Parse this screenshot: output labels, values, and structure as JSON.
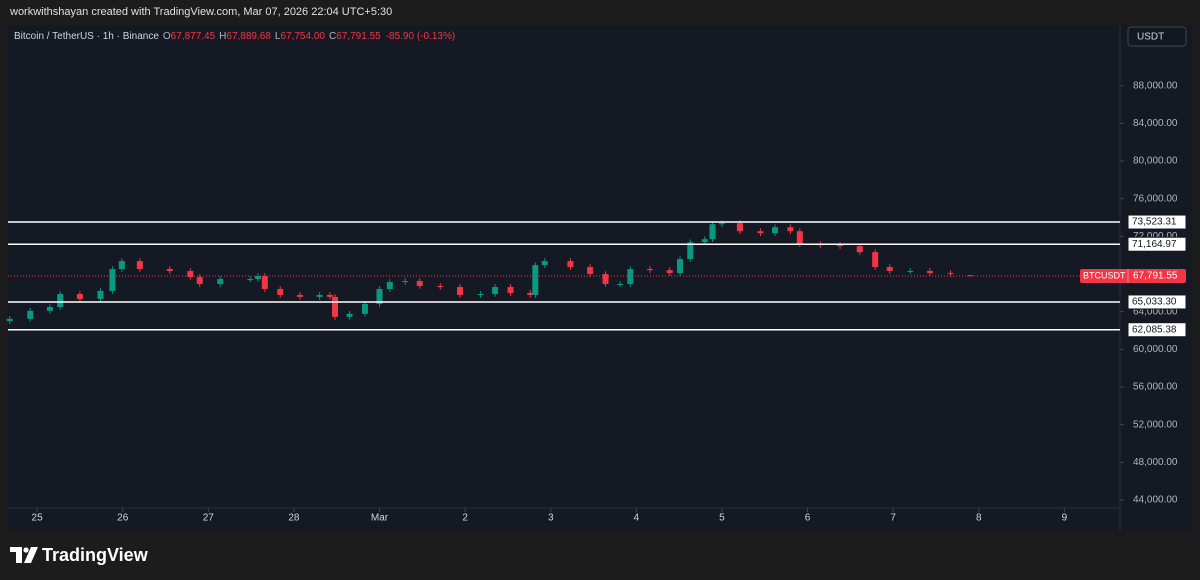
{
  "header": {
    "attribution": "workwithshayan created with TradingView.com, Mar 07, 2026 22:04 UTC+5:30"
  },
  "footer": {
    "brand": "TradingView"
  },
  "chart_data": {
    "type": "candlestick",
    "symbol": "Bitcoin / TetherUS · 1h · Binance",
    "ohlc_header": [
      {
        "key": "O",
        "value": "67,877.45"
      },
      {
        "key": "H",
        "value": "67,889.68"
      },
      {
        "key": "L",
        "value": "67,754.00"
      },
      {
        "key": "C",
        "value": "67,791.55"
      }
    ],
    "change": "-85.90 (-0.13%)",
    "currency": "USDT",
    "up_color": "#089981",
    "down_color": "#f23645",
    "grid": false,
    "x": [
      24.68,
      24.92,
      25.15,
      25.27,
      25.5,
      25.74,
      25.88,
      25.99,
      26.2,
      26.55,
      26.79,
      26.9,
      27.14,
      27.49,
      27.58,
      27.66,
      27.84,
      28.07,
      28.3,
      28.42,
      28.48,
      28.65,
      28.83,
      29.0,
      29.12,
      29.3,
      29.47,
      29.71,
      29.94,
      30.18,
      30.35,
      30.53,
      30.76,
      30.82,
      30.93,
      31.23,
      31.46,
      31.64,
      31.81,
      31.93,
      32.16,
      32.39,
      32.51,
      32.63,
      32.8,
      32.89,
      33.0,
      33.21,
      33.45,
      33.62,
      33.8,
      33.91,
      34.15,
      34.38,
      34.61,
      34.79,
      34.96,
      35.2,
      35.43,
      35.67,
      35.9
    ],
    "open": [
      63000,
      63240,
      64090,
      64500,
      65880,
      65350,
      66200,
      68530,
      69380,
      68530,
      68320,
      67680,
      66940,
      67470,
      67470,
      67790,
      66410,
      65780,
      65570,
      65780,
      65570,
      63450,
      63770,
      64820,
      66410,
      67150,
      67260,
      66730,
      66620,
      65780,
      65880,
      66620,
      65990,
      65780,
      68950,
      69380,
      68740,
      68000,
      66940,
      66940,
      68530,
      68420,
      68100,
      69590,
      71380,
      71700,
      73290,
      73400,
      72550,
      72340,
      72970,
      72550,
      71170,
      71070,
      70960,
      70330,
      68740,
      68320,
      68320,
      68100,
      67877.45
    ],
    "high": [
      63540,
      64390,
      64800,
      66180,
      66180,
      66500,
      68830,
      69680,
      69680,
      68830,
      68620,
      67980,
      67770,
      67770,
      68090,
      68090,
      66710,
      66080,
      66080,
      66080,
      65870,
      64070,
      65120,
      66710,
      67450,
      67560,
      67560,
      67030,
      66920,
      66180,
      66920,
      66920,
      66290,
      69250,
      69680,
      69680,
      69040,
      68300,
      67240,
      68830,
      68830,
      68720,
      69890,
      71680,
      72000,
      73590,
      73700,
      73700,
      72850,
      73270,
      73270,
      72850,
      71470,
      71370,
      71260,
      70630,
      69040,
      68620,
      68620,
      68400,
      67889.68
    ],
    "low": [
      62700,
      62940,
      63790,
      64200,
      65050,
      65050,
      65900,
      68230,
      68230,
      68020,
      67380,
      66640,
      66640,
      67170,
      67170,
      66110,
      65480,
      65270,
      65270,
      65270,
      63150,
      63150,
      63470,
      64520,
      66110,
      66850,
      66430,
      66320,
      65480,
      65480,
      65580,
      65690,
      65480,
      65480,
      68650,
      68440,
      67700,
      66640,
      66640,
      66640,
      68120,
      67800,
      67800,
      69290,
      71080,
      71400,
      72990,
      72250,
      72040,
      72040,
      72250,
      70870,
      70770,
      70660,
      70030,
      68440,
      68020,
      68020,
      67800,
      67700,
      67754.0
    ],
    "close": [
      63240,
      64090,
      64500,
      65880,
      65350,
      66200,
      68530,
      69380,
      68530,
      68320,
      67680,
      66940,
      67470,
      67470,
      67790,
      66410,
      65780,
      65570,
      65780,
      65570,
      63450,
      63770,
      64820,
      66410,
      67150,
      67260,
      66730,
      66620,
      65780,
      65880,
      66620,
      65990,
      65780,
      68950,
      69380,
      68740,
      68000,
      66940,
      66940,
      68530,
      68420,
      68100,
      69590,
      71380,
      71700,
      73290,
      73400,
      72550,
      72340,
      72970,
      72550,
      71170,
      71070,
      70960,
      70330,
      68740,
      68320,
      68320,
      68100,
      68000,
      67791.55
    ],
    "xlim": [
      24.66,
      37.65
    ],
    "xticks": [
      {
        "value": 25,
        "label": "25"
      },
      {
        "value": 26,
        "label": "26"
      },
      {
        "value": 27,
        "label": "27"
      },
      {
        "value": 28,
        "label": "28"
      },
      {
        "value": 29,
        "label": "Mar"
      },
      {
        "value": 30,
        "label": "2"
      },
      {
        "value": 31,
        "label": "3"
      },
      {
        "value": 32,
        "label": "4"
      },
      {
        "value": 33,
        "label": "5"
      },
      {
        "value": 34,
        "label": "6"
      },
      {
        "value": 35,
        "label": "7"
      },
      {
        "value": 36,
        "label": "8"
      },
      {
        "value": 37,
        "label": "9"
      }
    ],
    "ylim": [
      43150,
      94450
    ],
    "yticks": [
      {
        "value": 44000,
        "label": "44,000.00"
      },
      {
        "value": 48000,
        "label": "48,000.00"
      },
      {
        "value": 52000,
        "label": "52,000.00"
      },
      {
        "value": 56000,
        "label": "56,000.00"
      },
      {
        "value": 60000,
        "label": "60,000.00"
      },
      {
        "value": 64000,
        "label": "64,000.00"
      },
      {
        "value": 68000,
        "label": "68,000.00"
      },
      {
        "value": 72000,
        "label": "72,000.00"
      },
      {
        "value": 76000,
        "label": "76,000.00"
      },
      {
        "value": 80000,
        "label": "80,000.00"
      },
      {
        "value": 84000,
        "label": "84,000.00"
      },
      {
        "value": 88000,
        "label": "88,000.00"
      }
    ],
    "levels": [
      {
        "value": 73523.31,
        "label": "73,523.31"
      },
      {
        "value": 71164.97,
        "label": "71,164.97"
      },
      {
        "value": 65033.3,
        "label": "65,033.30"
      },
      {
        "value": 62085.38,
        "label": "62,085.38"
      }
    ],
    "last": {
      "name": "BTCUSDT",
      "value": 67791.55,
      "label": "67,791.55"
    }
  }
}
